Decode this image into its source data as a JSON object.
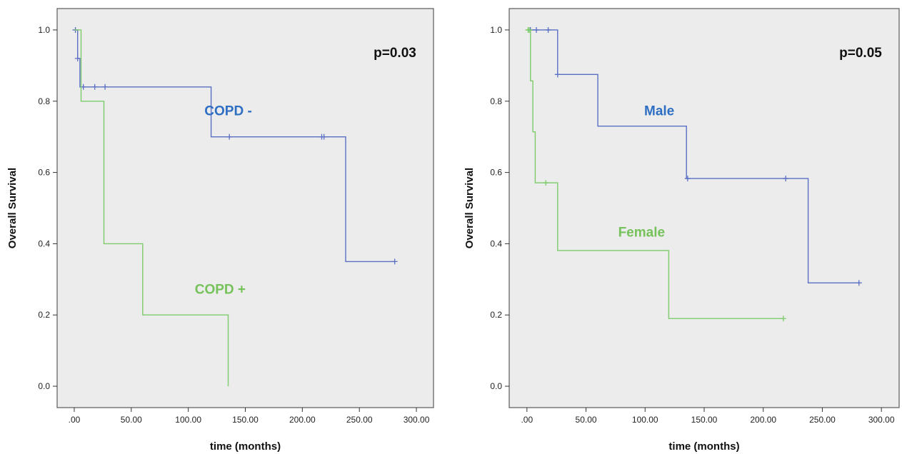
{
  "chart_data": [
    {
      "type": "line",
      "subtype": "kaplan-meier step",
      "xlabel": "time (months)",
      "ylabel": "Overall Survival",
      "xlim": [
        -15,
        315
      ],
      "ylim": [
        -0.06,
        1.06
      ],
      "x_ticks": [
        ".00",
        "50.00",
        "100.00",
        "150.00",
        "200.00",
        "250.00",
        "300.00"
      ],
      "x_tick_values": [
        0,
        50,
        100,
        150,
        200,
        250,
        300
      ],
      "y_ticks": [
        "0.0",
        "0.2",
        "0.4",
        "0.6",
        "0.8",
        "1.0"
      ],
      "y_tick_values": [
        0,
        0.2,
        0.4,
        0.6,
        0.8,
        1.0
      ],
      "annotation": "p=0.03",
      "grid": false,
      "background": "#ececec",
      "series": [
        {
          "name": "COPD -",
          "color": "#5a6fc4",
          "label_color": "#2e6fc3",
          "label_at": [
            135,
            0.76
          ],
          "steps": [
            [
              0,
              1.0
            ],
            [
              3,
              0.92
            ],
            [
              5,
              0.84
            ],
            [
              120,
              0.7
            ],
            [
              238,
              0.35
            ],
            [
              281,
              0.35
            ]
          ],
          "censored": [
            [
              1,
              1.0
            ],
            [
              3,
              0.92
            ],
            [
              8,
              0.84
            ],
            [
              18,
              0.84
            ],
            [
              27,
              0.84
            ],
            [
              136,
              0.7
            ],
            [
              217,
              0.7
            ],
            [
              219,
              0.7
            ],
            [
              281,
              0.35
            ]
          ]
        },
        {
          "name": "COPD +",
          "color": "#7dcb6a",
          "label_color": "#76c25a",
          "label_at": [
            128,
            0.26
          ],
          "steps": [
            [
              0,
              1.0
            ],
            [
              6,
              0.8
            ],
            [
              26,
              0.4
            ],
            [
              60,
              0.2
            ],
            [
              135,
              0.0
            ]
          ],
          "censored": []
        }
      ]
    },
    {
      "type": "line",
      "subtype": "kaplan-meier step",
      "xlabel": "time (months)",
      "ylabel": "Overall Survival",
      "xlim": [
        -15,
        315
      ],
      "ylim": [
        -0.06,
        1.06
      ],
      "x_ticks": [
        ".00",
        "50.00",
        "100.00",
        "150.00",
        "200.00",
        "250.00",
        "300.00"
      ],
      "x_tick_values": [
        0,
        50,
        100,
        150,
        200,
        250,
        300
      ],
      "y_ticks": [
        "0.0",
        "0.2",
        "0.4",
        "0.6",
        "0.8",
        "1.0"
      ],
      "y_tick_values": [
        0,
        0.2,
        0.4,
        0.6,
        0.8,
        1.0
      ],
      "annotation": "p=0.05",
      "grid": false,
      "background": "#ececec",
      "series": [
        {
          "name": "Male",
          "color": "#5a6fc4",
          "label_color": "#2e6fc3",
          "label_at": [
            112,
            0.76
          ],
          "steps": [
            [
              0,
              1.0
            ],
            [
              26,
              0.875
            ],
            [
              60,
              0.73
            ],
            [
              135,
              0.583
            ],
            [
              238,
              0.29
            ],
            [
              281,
              0.29
            ]
          ],
          "censored": [
            [
              3,
              1.0
            ],
            [
              8,
              1.0
            ],
            [
              18,
              1.0
            ],
            [
              26,
              0.875
            ],
            [
              136,
              0.583
            ],
            [
              219,
              0.583
            ],
            [
              281,
              0.29
            ]
          ]
        },
        {
          "name": "Female",
          "color": "#7dcb6a",
          "label_color": "#76c25a",
          "label_at": [
            97,
            0.42
          ],
          "steps": [
            [
              0,
              1.0
            ],
            [
              3,
              0.857
            ],
            [
              5,
              0.714
            ],
            [
              7,
              0.571
            ],
            [
              26,
              0.381
            ],
            [
              120,
              0.19
            ],
            [
              217,
              0.19
            ]
          ],
          "censored": [
            [
              1,
              1.0
            ],
            [
              2,
              1.0
            ],
            [
              16,
              0.571
            ],
            [
              217,
              0.19
            ]
          ]
        }
      ]
    }
  ]
}
